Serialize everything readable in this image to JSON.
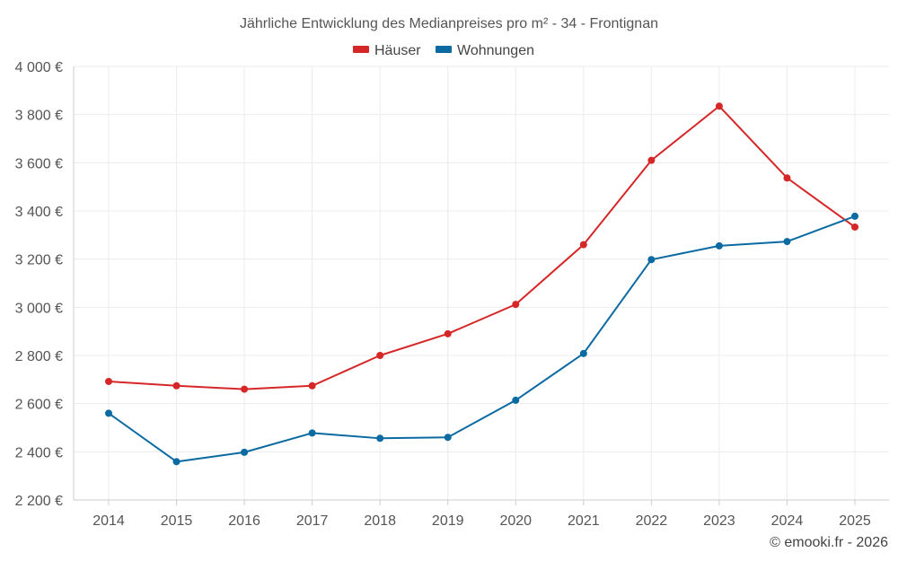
{
  "chart_data": {
    "type": "line",
    "title": "Jährliche Entwicklung des Medianpreises pro m² - 34 - Frontignan",
    "categories": [
      "2014",
      "2015",
      "2016",
      "2017",
      "2018",
      "2019",
      "2020",
      "2021",
      "2022",
      "2023",
      "2024",
      "2025"
    ],
    "series": [
      {
        "name": "Häuser",
        "color": "#d62728",
        "values": [
          2692,
          2674,
          2660,
          2674,
          2800,
          2890,
          3012,
          3260,
          3610,
          3835,
          3537,
          3333
        ]
      },
      {
        "name": "Wohnungen",
        "color": "#0a6aa1",
        "values": [
          2560,
          2359,
          2398,
          2478,
          2456,
          2460,
          2614,
          2808,
          3198,
          3255,
          3273,
          3378
        ]
      }
    ],
    "ylim": [
      2200,
      4000
    ],
    "yticks": [
      2200,
      2400,
      2600,
      2800,
      3000,
      3200,
      3400,
      3600,
      3800,
      4000
    ],
    "ytick_labels": [
      "2 200 €",
      "2 400 €",
      "2 600 €",
      "2 800 €",
      "3 000 €",
      "3 200 €",
      "3 400 €",
      "3 600 €",
      "3 800 €",
      "4 000 €"
    ],
    "xlabel": "",
    "ylabel": "",
    "grid": true,
    "legend_position": "top-center"
  },
  "credit": "© emooki.fr - 2026"
}
